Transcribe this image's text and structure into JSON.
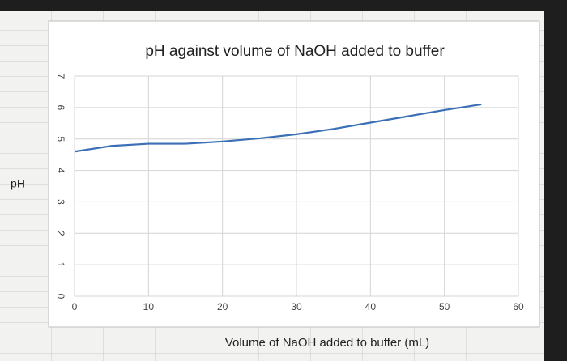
{
  "chart_data": {
    "type": "line",
    "title": "pH against volume of NaOH added to buffer",
    "x_label": "Volume of NaOH added to buffer (mL)",
    "y_label": "pH",
    "x": [
      0,
      5,
      10,
      15,
      20,
      25,
      30,
      35,
      40,
      45,
      50,
      55
    ],
    "series": [
      {
        "color": "#3b6fb6",
        "values": [
          4.6,
          4.78,
          4.85,
          4.85,
          4.92,
          5.02,
          5.15,
          5.32,
          5.52,
          5.72,
          5.92,
          6.1
        ]
      }
    ],
    "xlim": [
      0,
      60
    ],
    "xticks": [
      0,
      10,
      20,
      30,
      40,
      50,
      60
    ],
    "ylim": [
      0,
      7
    ],
    "yticks": [
      0,
      1,
      2,
      3,
      4,
      5,
      6,
      7
    ],
    "grid": true
  }
}
